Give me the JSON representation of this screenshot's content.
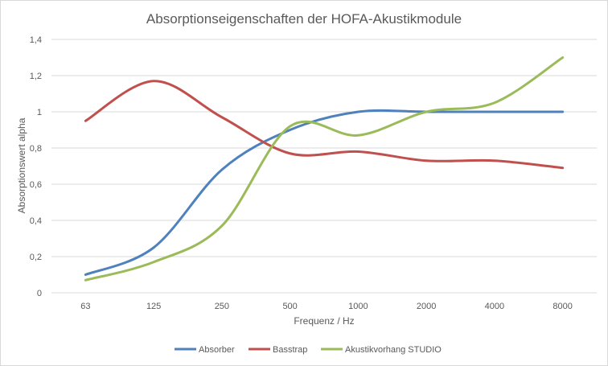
{
  "chart_data": {
    "type": "line",
    "title": "Absorptionseigenschaften der HOFA-Akustikmodule",
    "xlabel": "Frequenz / Hz",
    "ylabel": "Absorptionswert alpha",
    "categories": [
      "63",
      "125",
      "250",
      "500",
      "1000",
      "2000",
      "4000",
      "8000"
    ],
    "ylim": [
      0,
      1.4
    ],
    "yticks": [
      0,
      0.2,
      0.4,
      0.6,
      0.8,
      1,
      1.2,
      1.4
    ],
    "ytick_labels": [
      "0",
      "0,2",
      "0,4",
      "0,6",
      "0,8",
      "1",
      "1,2",
      "1,4"
    ],
    "grid": true,
    "smooth": true,
    "legend_position": "bottom",
    "series": [
      {
        "name": "Absorber",
        "color": "#4F81BD",
        "values": [
          0.1,
          0.25,
          0.68,
          0.9,
          1.0,
          1.0,
          1.0,
          1.0
        ]
      },
      {
        "name": "Basstrap",
        "color": "#C0504D",
        "values": [
          0.95,
          1.17,
          0.97,
          0.77,
          0.78,
          0.73,
          0.73,
          0.69
        ]
      },
      {
        "name": "Akustikvorhang STUDIO",
        "color": "#9BBB59",
        "values": [
          0.07,
          0.17,
          0.37,
          0.92,
          0.87,
          1.0,
          1.05,
          1.3
        ]
      }
    ]
  }
}
